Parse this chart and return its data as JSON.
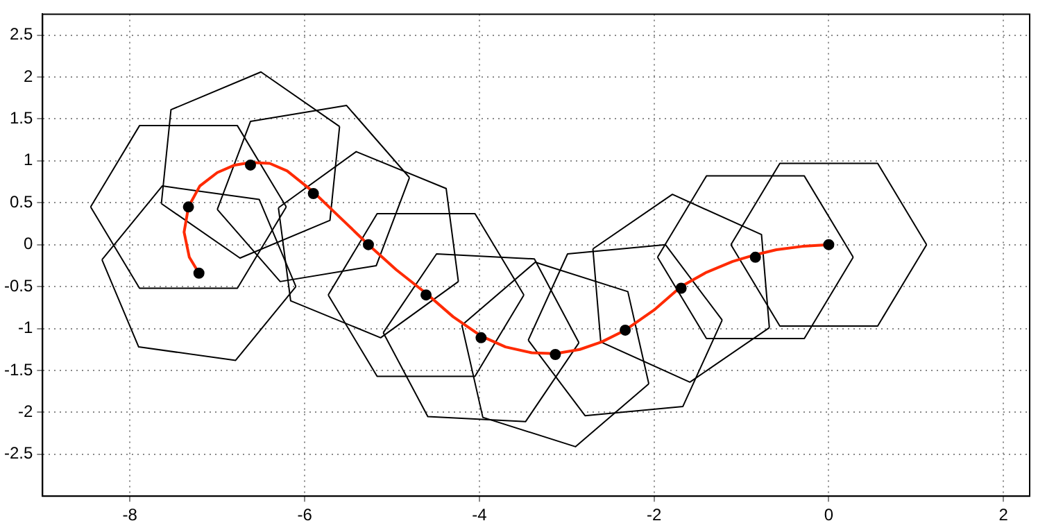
{
  "chart_data": {
    "type": "line",
    "xlim": [
      -9,
      2.3
    ],
    "ylim": [
      -3,
      2.75
    ],
    "xticks": [
      -8,
      -6,
      -4,
      -2,
      0,
      2
    ],
    "yticks": [
      -2.5,
      -2,
      -1.5,
      -1,
      -0.5,
      0,
      0.5,
      1,
      1.5,
      2,
      2.5
    ],
    "grid": true,
    "legend": false,
    "marker": "none",
    "line_style": "solid",
    "series": [
      {
        "color": "#000000",
        "x": [
          -8.32,
          -7.63,
          -6.52,
          -6.1
        ],
        "values": [
          -0.18,
          0.7,
          0.54,
          -0.5
        ]
      },
      {
        "color": "#000000",
        "x": [
          -8.32,
          -7.9,
          -6.79,
          -6.1
        ],
        "values": [
          -0.18,
          -1.22,
          -1.38,
          -0.5
        ]
      },
      {
        "color": "#000000",
        "x": [
          -8.45,
          -7.89,
          -6.77,
          -6.21
        ],
        "values": [
          0.45,
          1.42,
          1.42,
          0.45
        ]
      },
      {
        "color": "#000000",
        "x": [
          -8.45,
          -7.89,
          -6.77,
          -6.21
        ],
        "values": [
          0.45,
          -0.52,
          -0.52,
          0.45
        ]
      },
      {
        "color": "#000000",
        "x": [
          -7.64,
          -7.53,
          -6.5,
          -5.6
        ],
        "values": [
          0.49,
          1.61,
          2.06,
          1.41
        ]
      },
      {
        "color": "#000000",
        "x": [
          -7.64,
          -6.74,
          -5.71,
          -5.6
        ],
        "values": [
          0.49,
          -0.16,
          0.29,
          1.41
        ]
      },
      {
        "color": "#000000",
        "x": [
          -7.0,
          -6.62,
          -5.52,
          -4.8
        ],
        "values": [
          0.42,
          1.47,
          1.66,
          0.8
        ]
      },
      {
        "color": "#000000",
        "x": [
          -7.0,
          -6.28,
          -5.18,
          -4.8
        ],
        "values": [
          0.42,
          -0.44,
          -0.25,
          0.8
        ]
      },
      {
        "color": "#000000",
        "x": [
          -6.3,
          -5.41,
          -4.38,
          -4.24
        ],
        "values": [
          0.44,
          1.11,
          0.67,
          -0.44
        ]
      },
      {
        "color": "#000000",
        "x": [
          -6.3,
          -6.16,
          -5.13,
          -4.24
        ],
        "values": [
          0.44,
          -0.67,
          -1.11,
          -0.44
        ]
      },
      {
        "color": "#000000",
        "x": [
          -5.73,
          -5.17,
          -4.05,
          -3.49
        ],
        "values": [
          -0.6,
          0.37,
          0.37,
          -0.6
        ]
      },
      {
        "color": "#000000",
        "x": [
          -5.73,
          -5.17,
          -4.05,
          -3.49
        ],
        "values": [
          -0.6,
          -1.57,
          -1.57,
          -0.6
        ]
      },
      {
        "color": "#000000",
        "x": [
          -5.1,
          -4.49,
          -3.37,
          -2.86
        ],
        "values": [
          -1.05,
          -0.11,
          -0.17,
          -1.17
        ]
      },
      {
        "color": "#000000",
        "x": [
          -5.1,
          -4.59,
          -3.47,
          -2.86
        ],
        "values": [
          -1.05,
          -2.05,
          -2.11,
          -1.17
        ]
      },
      {
        "color": "#000000",
        "x": [
          -4.2,
          -3.36,
          -2.3,
          -2.06
        ],
        "values": [
          -0.96,
          -0.21,
          -0.56,
          -1.66
        ]
      },
      {
        "color": "#000000",
        "x": [
          -4.2,
          -3.96,
          -2.9,
          -2.06
        ],
        "values": [
          -0.96,
          -2.06,
          -2.41,
          -1.66
        ]
      },
      {
        "color": "#000000",
        "x": [
          -3.44,
          -2.99,
          -1.87,
          -1.22
        ],
        "values": [
          -1.14,
          -0.11,
          0.0,
          -0.9
        ]
      },
      {
        "color": "#000000",
        "x": [
          -3.44,
          -2.79,
          -1.67,
          -1.22
        ],
        "values": [
          -1.14,
          -2.04,
          -1.93,
          -0.9
        ]
      },
      {
        "color": "#000000",
        "x": [
          -2.7,
          -1.79,
          -0.77,
          -0.68
        ],
        "values": [
          -0.05,
          0.6,
          0.12,
          -0.99
        ]
      },
      {
        "color": "#000000",
        "x": [
          -2.7,
          -2.61,
          -1.59,
          -0.68
        ],
        "values": [
          -0.05,
          -1.16,
          -1.64,
          -0.99
        ]
      },
      {
        "color": "#000000",
        "x": [
          -1.96,
          -1.4,
          -0.28,
          0.28
        ],
        "values": [
          -0.15,
          0.82,
          0.82,
          -0.15
        ]
      },
      {
        "color": "#000000",
        "x": [
          -1.96,
          -1.4,
          -0.28,
          0.28
        ],
        "values": [
          -0.15,
          -1.12,
          -1.12,
          -0.15
        ]
      },
      {
        "color": "#000000",
        "x": [
          -1.12,
          -0.56,
          0.56,
          1.12
        ],
        "values": [
          0,
          0.97,
          0.97,
          0
        ]
      },
      {
        "color": "#000000",
        "x": [
          -1.12,
          -0.56,
          0.56,
          1.12
        ],
        "values": [
          0,
          -0.97,
          -0.97,
          0
        ]
      },
      {
        "color": "#ff2a00",
        "x": [
          -7.21,
          -7.32,
          -7.38,
          -7.33,
          -7.2,
          -7.0,
          -6.8,
          -6.62,
          -6.4,
          -6.2,
          -5.9,
          -5.6,
          -5.27,
          -4.95,
          -4.61,
          -4.3,
          -3.98,
          -3.7,
          -3.4,
          -3.13,
          -2.85,
          -2.6,
          -2.33,
          -2.0,
          -1.69,
          -1.4,
          -1.1,
          -0.84,
          -0.6,
          -0.3,
          0
        ],
        "values": [
          -0.34,
          -0.15,
          0.15,
          0.45,
          0.7,
          0.86,
          0.95,
          0.98,
          0.97,
          0.88,
          0.63,
          0.33,
          0.0,
          -0.3,
          -0.58,
          -0.86,
          -1.09,
          -1.22,
          -1.29,
          -1.3,
          -1.25,
          -1.16,
          -1.02,
          -0.78,
          -0.5,
          -0.33,
          -0.2,
          -0.12,
          -0.06,
          -0.02,
          0
        ]
      },
      {
        "type": "scatter",
        "color": "#000000",
        "marker": "circle",
        "x": [
          -7.21,
          -7.33,
          -6.62,
          -5.9,
          -5.27,
          -4.61,
          -3.98,
          -3.13,
          -2.33,
          -1.69,
          -0.84,
          0
        ],
        "values": [
          -0.34,
          0.45,
          0.95,
          0.61,
          0.0,
          -0.6,
          -1.11,
          -1.31,
          -1.02,
          -0.52,
          -0.15,
          0
        ]
      }
    ]
  }
}
